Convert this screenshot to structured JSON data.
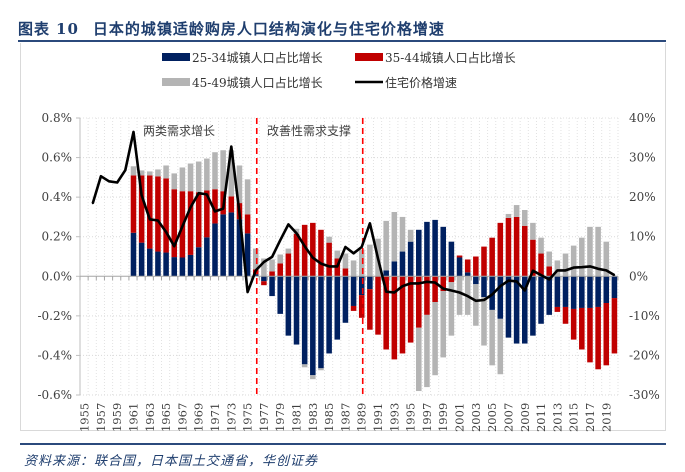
{
  "figure": {
    "label": "图表",
    "number": "10",
    "title": "日本的城镇适龄购房人口结构演化与住宅价格增速",
    "source": "资料来源：联合国，日本国土交通省，华创证券"
  },
  "colors": {
    "navy": "#002060",
    "red": "#c00000",
    "gray": "#b4b4b4",
    "line": "#000000",
    "divider": "#ff0000",
    "title": "#1f3e6e"
  },
  "chart_data": {
    "type": "bar",
    "stacked": true,
    "title": "日本的城镇适龄购房人口结构演化与住宅价格增速",
    "legend": {
      "position": "top",
      "entries": [
        "25-34城镇人口占比增长",
        "35-44城镇人口占比增长",
        "45-49城镇人口占比增长",
        "住宅价格增速"
      ]
    },
    "x_ticks": [
      "1955",
      "1957",
      "1959",
      "1961",
      "1963",
      "1965",
      "1967",
      "1969",
      "1971",
      "1973",
      "1975",
      "1977",
      "1979",
      "1981",
      "1983",
      "1985",
      "1987",
      "1989",
      "1991",
      "1993",
      "1995",
      "1997",
      "1999",
      "2001",
      "2003",
      "2005",
      "2007",
      "2009",
      "2011",
      "2013",
      "2015",
      "2017",
      "2019"
    ],
    "x_range": [
      1955,
      2020
    ],
    "left_axis": {
      "range": [
        -0.6,
        0.8
      ],
      "step": 0.2,
      "unit": "%",
      "ticks": [
        "-0.6%",
        "-0.4%",
        "-0.2%",
        "0.0%",
        "0.2%",
        "0.4%",
        "0.6%",
        "0.8%"
      ],
      "tick_values": [
        -0.6,
        -0.4,
        -0.2,
        0.0,
        0.2,
        0.4,
        0.6,
        0.8
      ]
    },
    "right_axis": {
      "range": [
        -30,
        40
      ],
      "step": 10,
      "unit": "%",
      "ticks": [
        "-30%",
        "-20%",
        "-10%",
        "0%",
        "10%",
        "20%",
        "30%",
        "40%"
      ],
      "tick_values": [
        -30,
        -20,
        -10,
        0,
        10,
        20,
        30,
        40
      ]
    },
    "grid": true,
    "annotations": [
      {
        "text": "两类需求增长",
        "near_year": 1966,
        "y_left": 0.74
      },
      {
        "text": "改善性需求支撑",
        "near_year": 1983,
        "y_left": 0.74
      }
    ],
    "dividers": [
      1976,
      1989
    ],
    "bar_years": [
      1961,
      1962,
      1963,
      1964,
      1965,
      1966,
      1967,
      1968,
      1969,
      1970,
      1971,
      1972,
      1973,
      1974,
      1975,
      1976,
      1977,
      1978,
      1979,
      1980,
      1981,
      1982,
      1983,
      1984,
      1985,
      1986,
      1987,
      1988,
      1989,
      1990,
      1991,
      1992,
      1993,
      1994,
      1995,
      1996,
      1997,
      1998,
      1999,
      2000,
      2001,
      2002,
      2003,
      2004,
      2005,
      2006,
      2007,
      2008,
      2009,
      2010,
      2011,
      2012,
      2013,
      2014,
      2015,
      2016,
      2017,
      2018,
      2019,
      2020
    ],
    "series": [
      {
        "name": "25-34城镇人口占比增长",
        "unit": "%",
        "axis": "left",
        "color": "#002060",
        "values": [
          0.22,
          0.17,
          0.14,
          0.125,
          0.12,
          0.097,
          0.095,
          0.108,
          0.147,
          0.197,
          0.267,
          0.313,
          0.323,
          0.288,
          0.217,
          0.01,
          -0.025,
          -0.1,
          -0.19,
          -0.3,
          -0.345,
          -0.445,
          -0.5,
          -0.465,
          -0.39,
          -0.32,
          -0.235,
          -0.15,
          -0.095,
          -0.065,
          0.0,
          0.03,
          0.075,
          0.125,
          0.175,
          0.235,
          0.275,
          0.285,
          0.25,
          0.175,
          0.095,
          0.02,
          -0.04,
          -0.105,
          -0.17,
          -0.215,
          -0.31,
          -0.34,
          -0.34,
          -0.3,
          -0.24,
          -0.195,
          -0.155,
          -0.155,
          -0.165,
          -0.16,
          -0.16,
          -0.155,
          -0.135,
          -0.11
        ]
      },
      {
        "name": "35-44城镇人口占比增长",
        "unit": "%",
        "axis": "left",
        "color": "#c00000",
        "values": [
          0.29,
          0.34,
          0.37,
          0.38,
          0.375,
          0.343,
          0.335,
          0.322,
          0.278,
          0.237,
          0.173,
          0.117,
          0.081,
          0.082,
          0.096,
          0.025,
          -0.02,
          0.025,
          0.065,
          0.115,
          0.215,
          0.26,
          0.27,
          0.235,
          0.17,
          0.09,
          0.04,
          -0.025,
          -0.115,
          -0.205,
          -0.295,
          -0.37,
          -0.42,
          -0.39,
          -0.335,
          -0.26,
          -0.195,
          -0.13,
          -0.075,
          -0.03,
          0.01,
          0.065,
          0.1,
          0.15,
          0.195,
          0.27,
          0.295,
          0.3,
          0.255,
          0.185,
          0.115,
          0.05,
          -0.025,
          -0.085,
          -0.155,
          -0.21,
          -0.275,
          -0.315,
          -0.315,
          -0.28
        ]
      },
      {
        "name": "45-49城镇人口占比增长",
        "unit": "%",
        "axis": "left",
        "color": "#b4b4b4",
        "values": [
          0.046,
          0.025,
          0.02,
          0.035,
          0.065,
          0.08,
          0.12,
          0.14,
          0.155,
          0.161,
          0.187,
          0.207,
          0.233,
          0.19,
          0.177,
          0.105,
          0.09,
          0.06,
          0.045,
          0.025,
          0.025,
          -0.015,
          -0.02,
          -0.01,
          0.03,
          0.04,
          0.075,
          0.08,
          0.135,
          0.16,
          0.19,
          0.25,
          0.25,
          0.175,
          0.06,
          -0.32,
          -0.365,
          -0.37,
          -0.335,
          -0.27,
          -0.195,
          -0.195,
          -0.21,
          -0.245,
          -0.28,
          -0.28,
          0.02,
          0.06,
          0.08,
          0.085,
          0.08,
          0.075,
          0.08,
          0.115,
          0.155,
          0.195,
          0.25,
          0.25,
          0.175,
          0.0
        ]
      }
    ],
    "negative_stack_note": "negative 45-49 values for 1996-2006 are stacked below the other negative series",
    "line": {
      "name": "住宅价格增速",
      "unit": "%",
      "axis": "right",
      "color": "#000000",
      "years": [
        1956,
        1957,
        1958,
        1959,
        1960,
        1961,
        1962,
        1963,
        1964,
        1965,
        1966,
        1967,
        1968,
        1969,
        1970,
        1971,
        1972,
        1973,
        1974,
        1975,
        1976,
        1977,
        1978,
        1979,
        1980,
        1981,
        1982,
        1983,
        1984,
        1985,
        1986,
        1987,
        1988,
        1989,
        1990,
        1991,
        1992,
        1993,
        1994,
        1995,
        1996,
        1997,
        1998,
        1999,
        2000,
        2001,
        2002,
        2003,
        2004,
        2005,
        2006,
        2007,
        2008,
        2009,
        2010,
        2011,
        2012,
        2013,
        2014,
        2015,
        2016,
        2017,
        2018,
        2019,
        2020
      ],
      "values": [
        18.4,
        25.3,
        24.0,
        23.7,
        26.8,
        36.5,
        20.5,
        14.4,
        14.1,
        11.2,
        7.6,
        12.6,
        17.4,
        21.0,
        20.7,
        16.4,
        17.1,
        32.8,
        15.9,
        -4.0,
        1.5,
        3.6,
        4.9,
        9.1,
        13.1,
        10.9,
        7.6,
        4.7,
        3.2,
        2.5,
        2.5,
        7.4,
        5.8,
        7.4,
        13.4,
        4.5,
        -3.9,
        -4.1,
        -2.5,
        -1.8,
        -1.8,
        -1.4,
        -1.6,
        -3.1,
        -3.6,
        -4.1,
        -5.0,
        -6.2,
        -6.0,
        -4.6,
        -2.5,
        -1.1,
        -1.3,
        -3.6,
        1.4,
        0.3,
        -0.8,
        1.5,
        1.5,
        2.2,
        2.3,
        2.5,
        1.9,
        1.5,
        0.3
      ]
    }
  }
}
